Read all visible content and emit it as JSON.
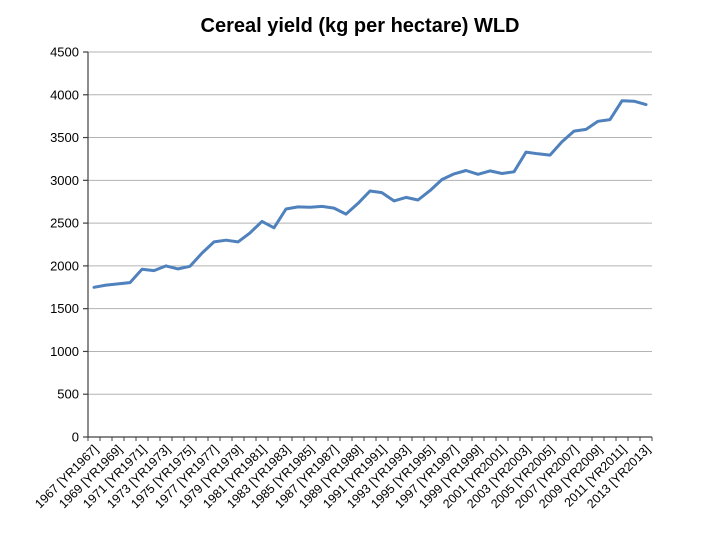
{
  "chart_data": {
    "type": "line",
    "title": "Cereal yield (kg per hectare) WLD",
    "series": [
      {
        "name": "WLD",
        "years": [
          1967,
          1968,
          1969,
          1970,
          1971,
          1972,
          1973,
          1974,
          1975,
          1976,
          1977,
          1978,
          1979,
          1980,
          1981,
          1982,
          1983,
          1984,
          1985,
          1986,
          1987,
          1988,
          1989,
          1990,
          1991,
          1992,
          1993,
          1994,
          1995,
          1996,
          1997,
          1998,
          1999,
          2000,
          2001,
          2002,
          2003,
          2004,
          2005,
          2006,
          2007,
          2008,
          2009,
          2010,
          2011,
          2012,
          2013
        ],
        "values": [
          1750,
          1775,
          1790,
          1805,
          1960,
          1945,
          2000,
          1965,
          1995,
          2150,
          2280,
          2300,
          2280,
          2385,
          2520,
          2445,
          2665,
          2690,
          2685,
          2695,
          2675,
          2605,
          2730,
          2875,
          2855,
          2760,
          2800,
          2770,
          2880,
          3010,
          3075,
          3115,
          3070,
          3110,
          3080,
          3100,
          3330,
          3310,
          3295,
          3450,
          3575,
          3595,
          3690,
          3710,
          3930,
          3925,
          3885
        ]
      }
    ],
    "x_tick_labels": [
      "1967 [YR1967]",
      "1969 [YR1969]",
      "1971 [YR1971]",
      "1973 [YR1973]",
      "1975 [YR1975]",
      "1977 [YR1977]",
      "1979 [YR1979]",
      "1981 [YR1981]",
      "1983 [YR1983]",
      "1985 [YR1985]",
      "1987 [YR1987]",
      "1989 [YR1989]",
      "1991 [YR1991]",
      "1993 [YR1993]",
      "1995 [YR1995]",
      "1997 [YR1997]",
      "1999 [YR1999]",
      "2001 [YR2001]",
      "2003 [YR2003]",
      "2005 [YR2005]",
      "2007 [YR2007]",
      "2009 [YR2009]",
      "2011 [YR2011]",
      "2013 [YR2013]"
    ],
    "x_label_interval": 2,
    "y_tick_labels": [
      "0",
      "500",
      "1000",
      "1500",
      "2000",
      "2500",
      "3000",
      "3500",
      "4000",
      "4500"
    ],
    "ylim": [
      0,
      4500
    ],
    "ytick_step": 500,
    "grid": true,
    "legend_position": "none",
    "colors": {
      "line": "#4F81BD",
      "gridline": "#B3B3B3",
      "axis": "#404040",
      "tick_text": "#000000",
      "title_text": "#000000",
      "background": "#FFFFFF"
    }
  }
}
